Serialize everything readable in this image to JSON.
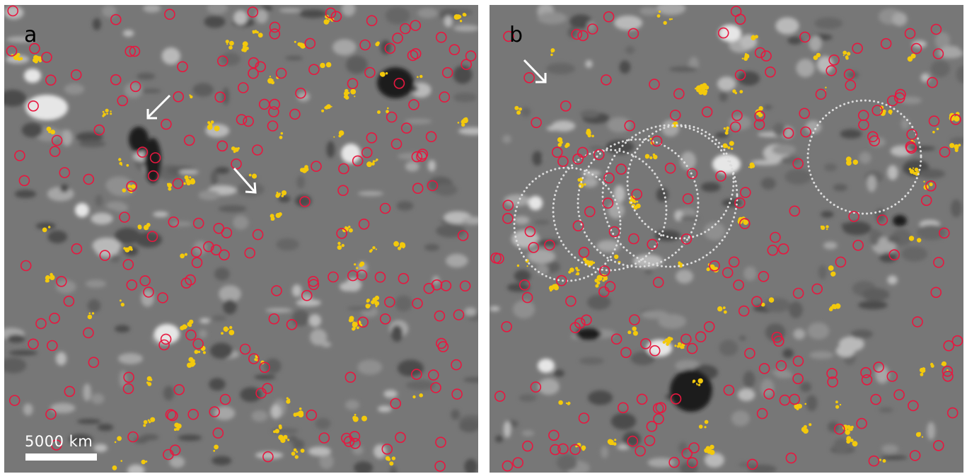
{
  "panels": [
    {
      "id": "a",
      "label": "a",
      "scale_bar": "5000  km"
    },
    {
      "id": "b",
      "label": "b"
    }
  ],
  "colors": {
    "background": "#777777",
    "circle": "#e8173f",
    "yellow": "#f3c90c",
    "dark": "#1e1e1e",
    "light": "#e6e6e6",
    "dotted": "#dcdcdc",
    "arrow": "#ffffff"
  }
}
